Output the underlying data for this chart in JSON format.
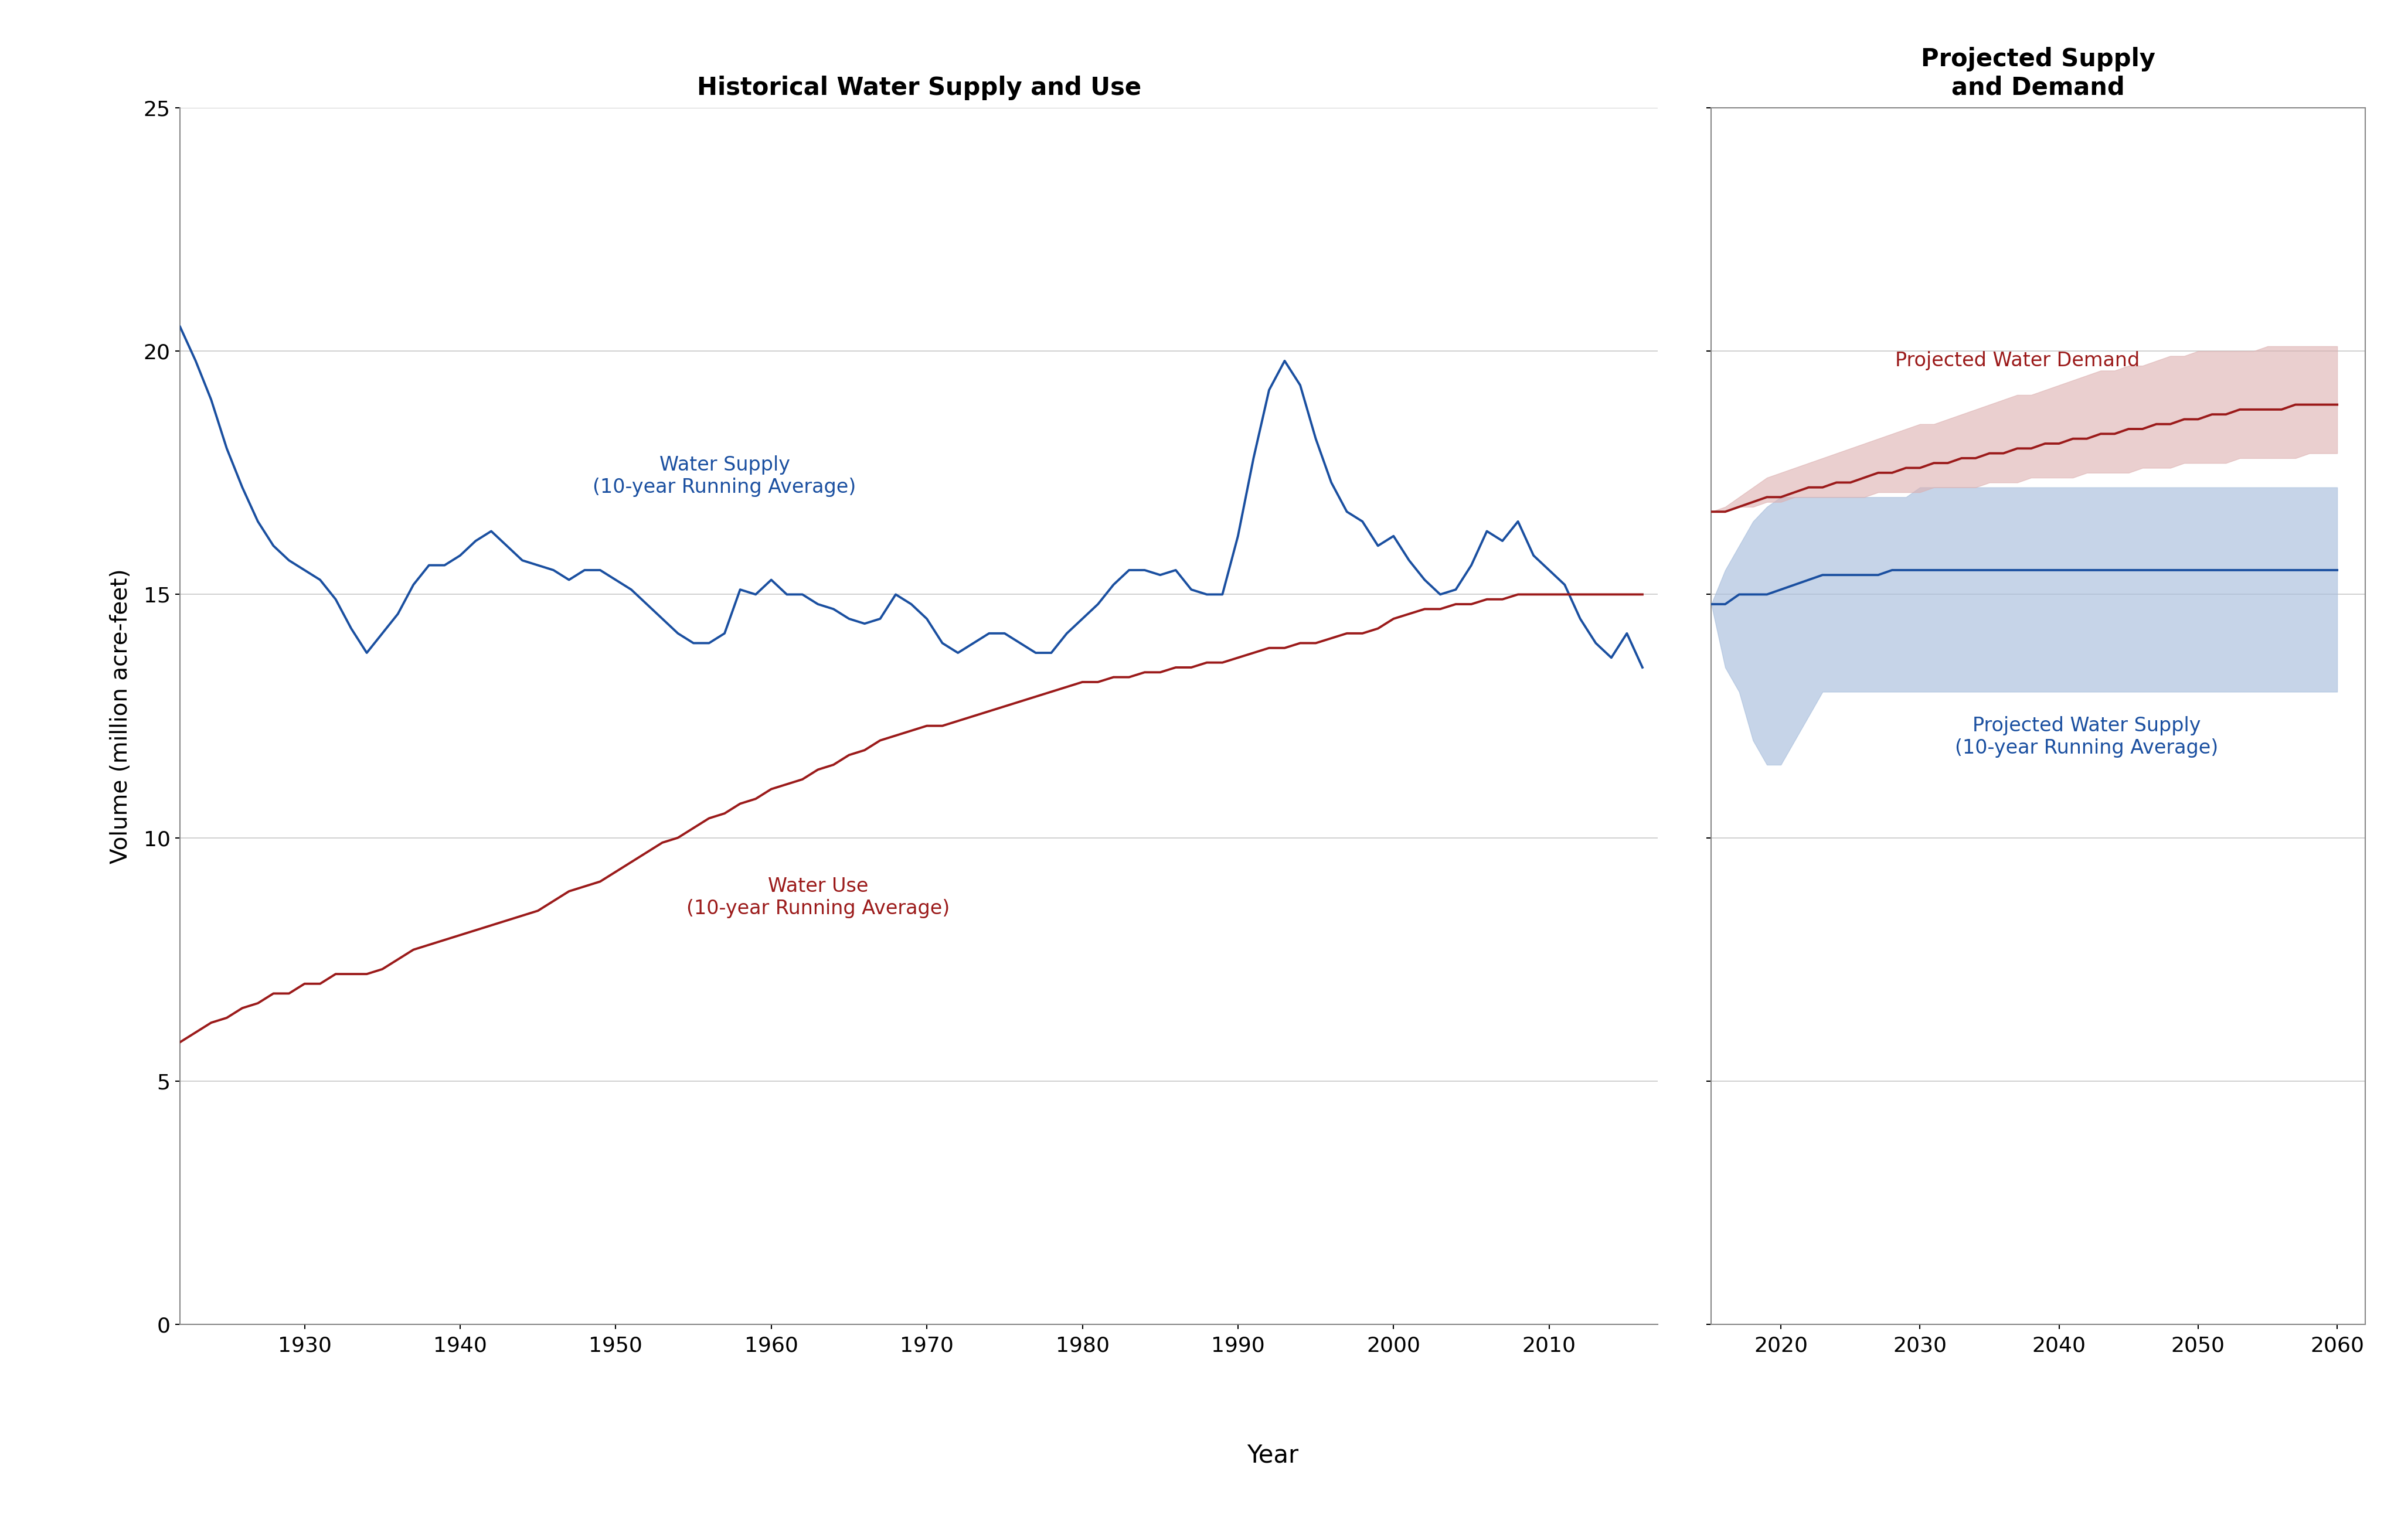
{
  "hist_title": "Historical Water Supply and Use",
  "proj_title": "Projected Supply\nand Demand",
  "xlabel": "Year",
  "ylabel": "Volume (million acre-feet)",
  "ylim": [
    0,
    25
  ],
  "yticks": [
    0,
    5,
    10,
    15,
    20,
    25
  ],
  "supply_color": "#1a4fa0",
  "use_color": "#9b1a1a",
  "proj_supply_color": "#1a4fa0",
  "proj_demand_color": "#9b1a1a",
  "proj_supply_fill": "#a8bedc",
  "proj_demand_fill": "#dcb0b0",
  "hist_supply_years": [
    1922,
    1923,
    1924,
    1925,
    1926,
    1927,
    1928,
    1929,
    1930,
    1931,
    1932,
    1933,
    1934,
    1935,
    1936,
    1937,
    1938,
    1939,
    1940,
    1941,
    1942,
    1943,
    1944,
    1945,
    1946,
    1947,
    1948,
    1949,
    1950,
    1951,
    1952,
    1953,
    1954,
    1955,
    1956,
    1957,
    1958,
    1959,
    1960,
    1961,
    1962,
    1963,
    1964,
    1965,
    1966,
    1967,
    1968,
    1969,
    1970,
    1971,
    1972,
    1973,
    1974,
    1975,
    1976,
    1977,
    1978,
    1979,
    1980,
    1981,
    1982,
    1983,
    1984,
    1985,
    1986,
    1987,
    1988,
    1989,
    1990,
    1991,
    1992,
    1993,
    1994,
    1995,
    1996,
    1997,
    1998,
    1999,
    2000,
    2001,
    2002,
    2003,
    2004,
    2005,
    2006,
    2007,
    2008,
    2009,
    2010,
    2011,
    2012,
    2013,
    2014,
    2015,
    2016
  ],
  "hist_supply_vals": [
    20.5,
    19.8,
    19.0,
    18.0,
    17.2,
    16.5,
    16.0,
    15.7,
    15.5,
    15.3,
    14.9,
    14.3,
    13.8,
    14.2,
    14.6,
    15.2,
    15.6,
    15.6,
    15.8,
    16.1,
    16.3,
    16.0,
    15.7,
    15.6,
    15.5,
    15.3,
    15.5,
    15.5,
    15.3,
    15.1,
    14.8,
    14.5,
    14.2,
    14.0,
    14.0,
    14.2,
    15.1,
    15.0,
    15.3,
    15.0,
    15.0,
    14.8,
    14.7,
    14.5,
    14.4,
    14.5,
    15.0,
    14.8,
    14.5,
    14.0,
    13.8,
    14.0,
    14.2,
    14.2,
    14.0,
    13.8,
    13.8,
    14.2,
    14.5,
    14.8,
    15.2,
    15.5,
    15.5,
    15.4,
    15.5,
    15.1,
    15.0,
    15.0,
    16.2,
    17.8,
    19.2,
    19.8,
    19.3,
    18.2,
    17.3,
    16.7,
    16.5,
    16.0,
    16.2,
    15.7,
    15.3,
    15.0,
    15.1,
    15.6,
    16.3,
    16.1,
    16.5,
    15.8,
    15.5,
    15.2,
    14.5,
    14.0,
    13.7,
    14.2,
    13.5
  ],
  "hist_use_years": [
    1922,
    1923,
    1924,
    1925,
    1926,
    1927,
    1928,
    1929,
    1930,
    1931,
    1932,
    1933,
    1934,
    1935,
    1936,
    1937,
    1938,
    1939,
    1940,
    1941,
    1942,
    1943,
    1944,
    1945,
    1946,
    1947,
    1948,
    1949,
    1950,
    1951,
    1952,
    1953,
    1954,
    1955,
    1956,
    1957,
    1958,
    1959,
    1960,
    1961,
    1962,
    1963,
    1964,
    1965,
    1966,
    1967,
    1968,
    1969,
    1970,
    1971,
    1972,
    1973,
    1974,
    1975,
    1976,
    1977,
    1978,
    1979,
    1980,
    1981,
    1982,
    1983,
    1984,
    1985,
    1986,
    1987,
    1988,
    1989,
    1990,
    1991,
    1992,
    1993,
    1994,
    1995,
    1996,
    1997,
    1998,
    1999,
    2000,
    2001,
    2002,
    2003,
    2004,
    2005,
    2006,
    2007,
    2008,
    2009,
    2010,
    2011,
    2012,
    2013,
    2014,
    2015,
    2016
  ],
  "hist_use_vals": [
    5.8,
    6.0,
    6.2,
    6.3,
    6.5,
    6.6,
    6.8,
    6.8,
    7.0,
    7.0,
    7.2,
    7.2,
    7.2,
    7.3,
    7.5,
    7.7,
    7.8,
    7.9,
    8.0,
    8.1,
    8.2,
    8.3,
    8.4,
    8.5,
    8.7,
    8.9,
    9.0,
    9.1,
    9.3,
    9.5,
    9.7,
    9.9,
    10.0,
    10.2,
    10.4,
    10.5,
    10.7,
    10.8,
    11.0,
    11.1,
    11.2,
    11.4,
    11.5,
    11.7,
    11.8,
    12.0,
    12.1,
    12.2,
    12.3,
    12.3,
    12.4,
    12.5,
    12.6,
    12.7,
    12.8,
    12.9,
    13.0,
    13.1,
    13.2,
    13.2,
    13.3,
    13.3,
    13.4,
    13.4,
    13.5,
    13.5,
    13.6,
    13.6,
    13.7,
    13.8,
    13.9,
    13.9,
    14.0,
    14.0,
    14.1,
    14.2,
    14.2,
    14.3,
    14.5,
    14.6,
    14.7,
    14.7,
    14.8,
    14.8,
    14.9,
    14.9,
    15.0,
    15.0,
    15.0,
    15.0,
    15.0,
    15.0,
    15.0,
    15.0,
    15.0
  ],
  "proj_years": [
    2015,
    2016,
    2017,
    2018,
    2019,
    2020,
    2021,
    2022,
    2023,
    2024,
    2025,
    2026,
    2027,
    2028,
    2029,
    2030,
    2031,
    2032,
    2033,
    2034,
    2035,
    2036,
    2037,
    2038,
    2039,
    2040,
    2041,
    2042,
    2043,
    2044,
    2045,
    2046,
    2047,
    2048,
    2049,
    2050,
    2051,
    2052,
    2053,
    2054,
    2055,
    2056,
    2057,
    2058,
    2059,
    2060
  ],
  "proj_supply_mean": [
    14.8,
    14.8,
    15.0,
    15.0,
    15.0,
    15.1,
    15.2,
    15.3,
    15.4,
    15.4,
    15.4,
    15.4,
    15.4,
    15.5,
    15.5,
    15.5,
    15.5,
    15.5,
    15.5,
    15.5,
    15.5,
    15.5,
    15.5,
    15.5,
    15.5,
    15.5,
    15.5,
    15.5,
    15.5,
    15.5,
    15.5,
    15.5,
    15.5,
    15.5,
    15.5,
    15.5,
    15.5,
    15.5,
    15.5,
    15.5,
    15.5,
    15.5,
    15.5,
    15.5,
    15.5,
    15.5
  ],
  "proj_supply_low": [
    14.8,
    13.5,
    13.0,
    12.0,
    11.5,
    11.5,
    12.0,
    12.5,
    13.0,
    13.0,
    13.0,
    13.0,
    13.0,
    13.0,
    13.0,
    13.0,
    13.0,
    13.0,
    13.0,
    13.0,
    13.0,
    13.0,
    13.0,
    13.0,
    13.0,
    13.0,
    13.0,
    13.0,
    13.0,
    13.0,
    13.0,
    13.0,
    13.0,
    13.0,
    13.0,
    13.0,
    13.0,
    13.0,
    13.0,
    13.0,
    13.0,
    13.0,
    13.0,
    13.0,
    13.0,
    13.0
  ],
  "proj_supply_high": [
    14.8,
    15.5,
    16.0,
    16.5,
    16.8,
    17.0,
    17.0,
    17.0,
    17.0,
    17.0,
    17.0,
    17.0,
    17.0,
    17.0,
    17.0,
    17.2,
    17.2,
    17.2,
    17.2,
    17.2,
    17.2,
    17.2,
    17.2,
    17.2,
    17.2,
    17.2,
    17.2,
    17.2,
    17.2,
    17.2,
    17.2,
    17.2,
    17.2,
    17.2,
    17.2,
    17.2,
    17.2,
    17.2,
    17.2,
    17.2,
    17.2,
    17.2,
    17.2,
    17.2,
    17.2,
    17.2
  ],
  "proj_demand_mean": [
    16.7,
    16.7,
    16.8,
    16.9,
    17.0,
    17.0,
    17.1,
    17.2,
    17.2,
    17.3,
    17.3,
    17.4,
    17.5,
    17.5,
    17.6,
    17.6,
    17.7,
    17.7,
    17.8,
    17.8,
    17.9,
    17.9,
    18.0,
    18.0,
    18.1,
    18.1,
    18.2,
    18.2,
    18.3,
    18.3,
    18.4,
    18.4,
    18.5,
    18.5,
    18.6,
    18.6,
    18.7,
    18.7,
    18.8,
    18.8,
    18.8,
    18.8,
    18.9,
    18.9,
    18.9,
    18.9
  ],
  "proj_demand_low": [
    16.7,
    16.7,
    16.8,
    16.8,
    16.9,
    16.9,
    17.0,
    17.0,
    17.0,
    17.0,
    17.0,
    17.0,
    17.1,
    17.1,
    17.1,
    17.1,
    17.2,
    17.2,
    17.2,
    17.2,
    17.3,
    17.3,
    17.3,
    17.4,
    17.4,
    17.4,
    17.4,
    17.5,
    17.5,
    17.5,
    17.5,
    17.6,
    17.6,
    17.6,
    17.7,
    17.7,
    17.7,
    17.7,
    17.8,
    17.8,
    17.8,
    17.8,
    17.8,
    17.9,
    17.9,
    17.9
  ],
  "proj_demand_high": [
    16.7,
    16.8,
    17.0,
    17.2,
    17.4,
    17.5,
    17.6,
    17.7,
    17.8,
    17.9,
    18.0,
    18.1,
    18.2,
    18.3,
    18.4,
    18.5,
    18.5,
    18.6,
    18.7,
    18.8,
    18.9,
    19.0,
    19.1,
    19.1,
    19.2,
    19.3,
    19.4,
    19.5,
    19.6,
    19.6,
    19.7,
    19.7,
    19.8,
    19.9,
    19.9,
    20.0,
    20.0,
    20.0,
    20.0,
    20.0,
    20.1,
    20.1,
    20.1,
    20.1,
    20.1,
    20.1
  ],
  "water_supply_label": "Water Supply\n(10-year Running Average)",
  "water_use_label": "Water Use\n(10-year Running Average)",
  "proj_supply_label": "Projected Water Supply\n(10-year Running Average)",
  "proj_demand_label": "Projected Water Demand",
  "background_color": "#ffffff",
  "grid_color": "#c8c8c8",
  "text_color": "#000000"
}
